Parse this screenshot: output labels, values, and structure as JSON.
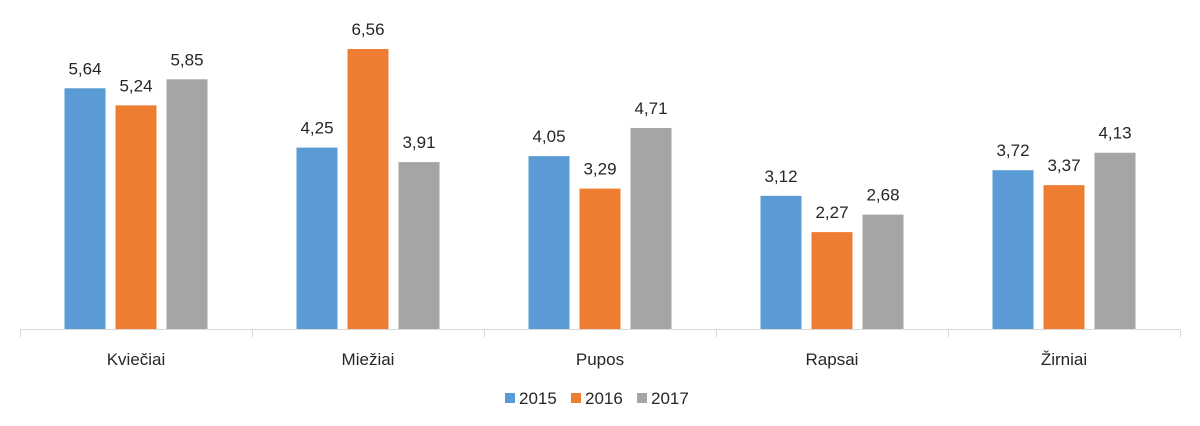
{
  "chart_data": {
    "type": "bar",
    "categories": [
      "Kviečiai",
      "Miežiai",
      "Pupos",
      "Rapsai",
      "Žirniai"
    ],
    "series": [
      {
        "name": "2015",
        "color": "#5b9bd5",
        "values": [
          5.64,
          4.25,
          4.05,
          3.12,
          3.72
        ],
        "labels": [
          "5,64",
          "4,25",
          "4,05",
          "3,12",
          "3,72"
        ]
      },
      {
        "name": "2016",
        "color": "#ed7d31",
        "values": [
          5.24,
          6.56,
          3.29,
          2.27,
          3.37
        ],
        "labels": [
          "5,24",
          "6,56",
          "3,29",
          "2,27",
          "3,37"
        ]
      },
      {
        "name": "2017",
        "color": "#a5a5a5",
        "values": [
          5.85,
          3.91,
          4.71,
          2.68,
          4.13
        ],
        "labels": [
          "5,85",
          "3,91",
          "4,71",
          "2,68",
          "4,13"
        ]
      }
    ],
    "ylim": [
      0,
      6.56
    ],
    "grid": false,
    "legend": "bottom-center"
  }
}
